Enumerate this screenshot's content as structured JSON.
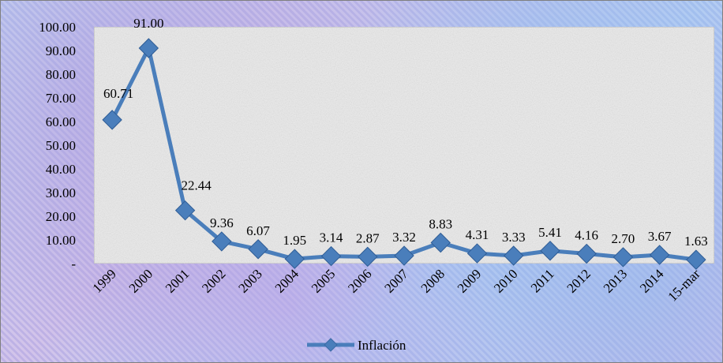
{
  "chart_data": {
    "type": "line",
    "categories": [
      "1999",
      "2000",
      "2001",
      "2002",
      "2003",
      "2004",
      "2005",
      "2006",
      "2007",
      "2008",
      "2009",
      "2010",
      "2011",
      "2012",
      "2013",
      "2014",
      "15-mar"
    ],
    "series": [
      {
        "name": "Inflación",
        "values": [
          60.71,
          91.0,
          22.44,
          9.36,
          6.07,
          1.95,
          3.14,
          2.87,
          3.32,
          8.83,
          4.31,
          3.33,
          5.41,
          4.16,
          2.7,
          3.67,
          1.63
        ],
        "labels": [
          "60.71",
          "91.00",
          "22.44",
          "9.36",
          "6.07",
          "1.95",
          "3.14",
          "2.87",
          "3.32",
          "8.83",
          "4.31",
          "3.33",
          "5.41",
          "4.16",
          "2.70",
          "3.67",
          "1.63"
        ],
        "color": "#4a7ebb"
      }
    ],
    "y_ticks": [
      "-",
      "10.00",
      "20.00",
      "30.00",
      "40.00",
      "50.00",
      "60.00",
      "70.00",
      "80.00",
      "90.00",
      "100.00"
    ],
    "ylim": [
      0,
      100
    ],
    "grid": false,
    "legend_position": "bottom",
    "plot_background": "textured light gray",
    "chart_background": "textured blue-violet"
  }
}
